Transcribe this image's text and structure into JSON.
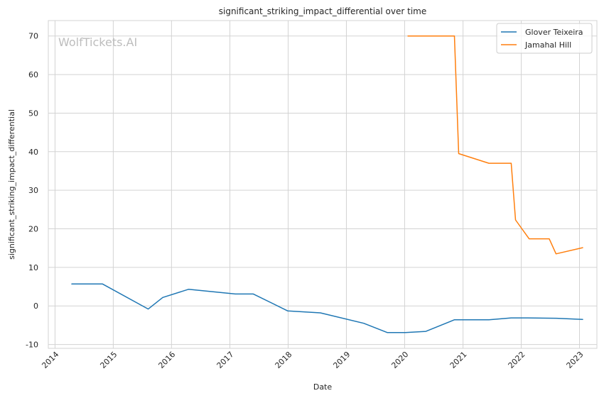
{
  "chart_data": {
    "type": "line",
    "title": "significant_striking_impact_differential over time",
    "xlabel": "Date",
    "ylabel": "significant_striking_impact_differential",
    "watermark": "WolfTickets.AI",
    "xlim": [
      "2013-11-20",
      "2023-04-20"
    ],
    "ylim": [
      -11,
      74
    ],
    "x_ticks": [
      "2014",
      "2015",
      "2016",
      "2017",
      "2018",
      "2019",
      "2020",
      "2021",
      "2022",
      "2023"
    ],
    "y_ticks": [
      -10,
      0,
      10,
      20,
      30,
      40,
      50,
      60,
      70
    ],
    "grid": true,
    "legend_position": "top-right",
    "series": [
      {
        "name": "Glover Teixeira",
        "color": "#1f77b4",
        "points": [
          {
            "x": "2014-04-16",
            "y": 5.7
          },
          {
            "x": "2014-10-25",
            "y": 5.7
          },
          {
            "x": "2015-08-08",
            "y": -0.8
          },
          {
            "x": "2015-11-07",
            "y": 2.2
          },
          {
            "x": "2016-04-16",
            "y": 4.3
          },
          {
            "x": "2017-02-04",
            "y": 3.1
          },
          {
            "x": "2017-05-28",
            "y": 3.1
          },
          {
            "x": "2017-12-30",
            "y": -1.3
          },
          {
            "x": "2018-07-22",
            "y": -1.8
          },
          {
            "x": "2019-04-20",
            "y": -4.5
          },
          {
            "x": "2019-09-14",
            "y": -6.9
          },
          {
            "x": "2020-01-06",
            "y": -6.9
          },
          {
            "x": "2020-05-13",
            "y": -6.6
          },
          {
            "x": "2020-11-07",
            "y": -3.6
          },
          {
            "x": "2021-06-12",
            "y": -3.6
          },
          {
            "x": "2021-10-30",
            "y": -3.1
          },
          {
            "x": "2022-02-10",
            "y": -3.1
          },
          {
            "x": "2022-08-10",
            "y": -3.2
          },
          {
            "x": "2023-01-21",
            "y": -3.5
          }
        ]
      },
      {
        "name": "Jamahal Hill",
        "color": "#ff7f0e",
        "points": [
          {
            "x": "2020-01-22",
            "y": 70
          },
          {
            "x": "2020-11-08",
            "y": 70
          },
          {
            "x": "2020-12-05",
            "y": 39.5
          },
          {
            "x": "2021-06-12",
            "y": 37
          },
          {
            "x": "2021-10-30",
            "y": 37
          },
          {
            "x": "2021-11-26",
            "y": 22.3
          },
          {
            "x": "2022-02-19",
            "y": 17.4
          },
          {
            "x": "2022-06-25",
            "y": 17.4
          },
          {
            "x": "2022-08-07",
            "y": 13.5
          },
          {
            "x": "2023-01-21",
            "y": 15.1
          }
        ]
      }
    ]
  }
}
